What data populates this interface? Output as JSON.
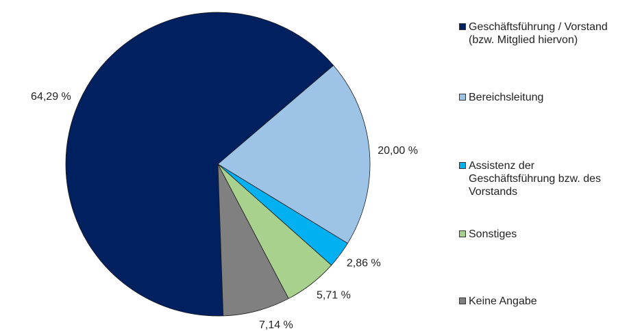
{
  "chart_data": {
    "type": "pie",
    "categories": [
      "Geschäftsführung / Vorstand\n(bzw. Mitglied hiervon)",
      "Bereichsleitung",
      "Assistenz der\nGeschäftsführung bzw. des\nVorstands",
      "Sonstiges",
      "Keine Angabe"
    ],
    "values": [
      64.29,
      20.0,
      2.86,
      5.71,
      7.14
    ],
    "value_labels": [
      "64,29 %",
      "20,00 %",
      "2,86 %",
      "5,71 %",
      "7,14 %"
    ],
    "colors": [
      "#002060",
      "#9dc3e6",
      "#00b0f0",
      "#a9d18e",
      "#808080"
    ],
    "legend": "right"
  }
}
